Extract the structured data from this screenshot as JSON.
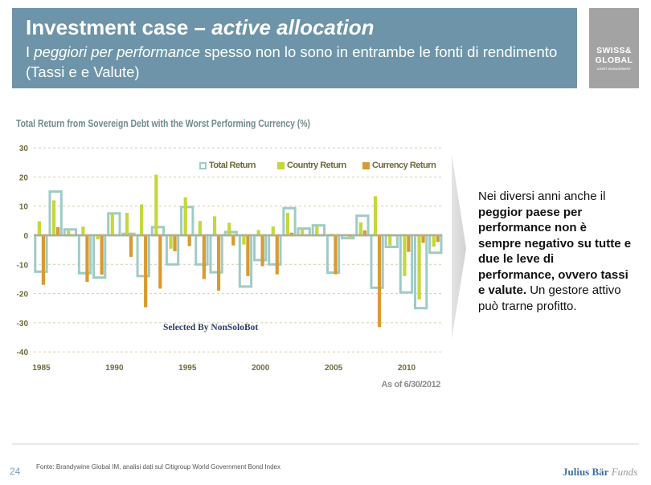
{
  "header": {
    "title_plain": "Investment case – ",
    "title_italic": "active allocation",
    "subtitle_prefix": "I ",
    "subtitle_italic": "peggiori per performance",
    "subtitle_rest": " spesso non lo sono in entrambe le fonti di rendimento (Tassi e e Valute)",
    "background_color": "#6d94a8"
  },
  "logo": {
    "line1": "SWISS&",
    "line2": "GLOBAL",
    "line3": "ASSET MANAGEMENT"
  },
  "chart_data": {
    "type": "bar",
    "title": "Total Return from Sovereign Debt with the Worst Performing Currency (%)",
    "xlabel": "",
    "ylabel": "",
    "x": [
      1985,
      1986,
      1987,
      1988,
      1989,
      1990,
      1991,
      1992,
      1993,
      1994,
      1995,
      1996,
      1997,
      1998,
      1999,
      2000,
      2001,
      2002,
      2003,
      2004,
      2005,
      2006,
      2007,
      2008,
      2009,
      2010,
      2011,
      2012
    ],
    "xtick_labels": [
      "1985",
      "1990",
      "1995",
      "2000",
      "2005",
      "2010"
    ],
    "yticks": [
      30,
      20,
      10,
      0,
      -10,
      -20,
      -30,
      -40
    ],
    "ylim": [
      -40,
      30
    ],
    "grid": true,
    "legend_position": "top-right",
    "series": [
      {
        "name": "Total Return",
        "style": "outline",
        "color": "#9fcbc6",
        "values": [
          -12.5,
          15,
          2,
          -13,
          -14.5,
          7.5,
          0.5,
          -14,
          2.8,
          -10,
          9.7,
          -10,
          -12.7,
          1.1,
          -17.6,
          -8.5,
          -10,
          9.3,
          2.3,
          3.4,
          -12.8,
          -1,
          6.7,
          -18,
          -4,
          -19.6,
          -25,
          -6
        ]
      },
      {
        "name": "Country Return",
        "style": "filled",
        "color": "#c3d83a",
        "values": [
          4.8,
          12,
          1.5,
          3,
          -1.4,
          7.5,
          7.7,
          10.6,
          20.8,
          -4.6,
          13,
          4.9,
          6.5,
          4.3,
          -3.2,
          1.8,
          3,
          7.7,
          1.9,
          3.2,
          0.5,
          0,
          4.4,
          13.4,
          -3.5,
          -14,
          -22,
          -3.9
        ]
      },
      {
        "name": "Currency Return",
        "style": "filled",
        "color": "#d99a30",
        "values": [
          -17,
          2.8,
          0,
          -16,
          -13.5,
          0,
          -7.4,
          -24.7,
          -18.3,
          -5.5,
          -3.7,
          -15,
          -19,
          -3.5,
          -14,
          -10.6,
          -13.4,
          0.9,
          0,
          0,
          -13.4,
          -0.5,
          1.7,
          -31.5,
          0,
          -5.7,
          -2.6,
          -2.3
        ]
      }
    ],
    "annotation": "As of 6/30/2012",
    "watermark": "Selected By NonSoloBot"
  },
  "side_text": {
    "lines": [
      [
        {
          "text": "Nei diversi anni anche il",
          "bold": false
        }
      ],
      [
        {
          "text": "peggior paese per",
          "bold": true
        }
      ],
      [
        {
          "text": "performance non è",
          "bold": true
        }
      ],
      [
        {
          "text": "sempre negativo su tutte e",
          "bold": true
        }
      ],
      [
        {
          "text": "due le leve di",
          "bold": true
        }
      ],
      [
        {
          "text": "performance, ovvero tassi",
          "bold": true
        }
      ],
      [
        {
          "text": "e valute.",
          "bold": true
        },
        {
          "text": " Un gestore attivo",
          "bold": false
        }
      ],
      [
        {
          "text": "può trarne profitto.",
          "bold": false
        }
      ]
    ]
  },
  "footer": {
    "page_number": "24",
    "source": "Fonte: Brandywine Global IM, analisi dati sul Citigroup World Government Bond Index",
    "brand_name": "Julius Bär",
    "brand_suffix": "Funds"
  }
}
